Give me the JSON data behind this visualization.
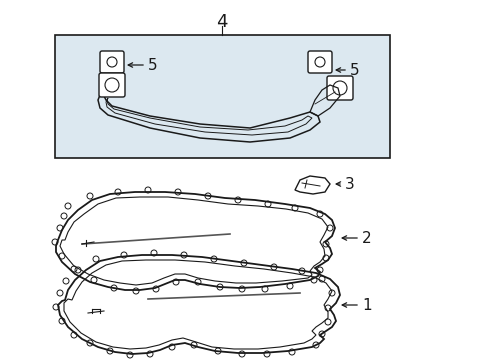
{
  "bg_color": "#ffffff",
  "line_color": "#1a1a1a",
  "box_bg": "#dce8f0",
  "fig_width": 4.89,
  "fig_height": 3.6,
  "dpi": 100,
  "font_size": 11
}
